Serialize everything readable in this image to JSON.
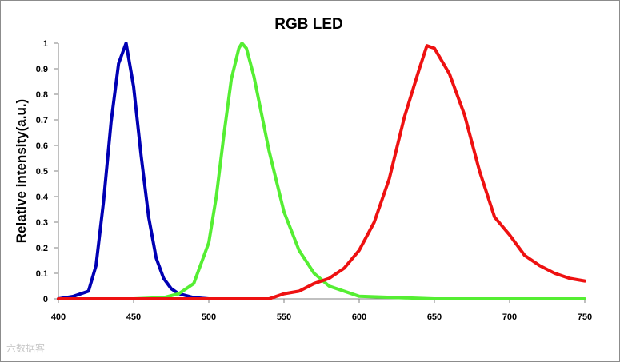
{
  "chart_data": {
    "type": "line",
    "title": "RGB LED",
    "xlabel": "",
    "ylabel": "Relative intensity(a.u.)",
    "xlim": [
      400,
      750
    ],
    "ylim": [
      0,
      1
    ],
    "x_ticks": [
      "400",
      "450",
      "500",
      "550",
      "600",
      "650",
      "700",
      "750"
    ],
    "y_ticks": [
      "0",
      "0.1",
      "0.2",
      "0.3",
      "0.4",
      "0.5",
      "0.6",
      "0.7",
      "0.8",
      "0.9",
      "1"
    ],
    "grid": false,
    "legend": "none",
    "series": [
      {
        "color": "#0000b4",
        "x": [
          400,
          410,
          420,
          425,
          430,
          435,
          440,
          445,
          450,
          455,
          460,
          465,
          470,
          475,
          480,
          490,
          500
        ],
        "y": [
          0.0,
          0.01,
          0.03,
          0.13,
          0.38,
          0.69,
          0.92,
          1.0,
          0.83,
          0.56,
          0.32,
          0.16,
          0.08,
          0.04,
          0.02,
          0.005,
          0.0
        ]
      },
      {
        "color": "#55ee33",
        "x": [
          450,
          470,
          480,
          490,
          500,
          505,
          510,
          515,
          520,
          522,
          525,
          530,
          540,
          550,
          560,
          570,
          580,
          600,
          650,
          750
        ],
        "y": [
          0.0,
          0.005,
          0.02,
          0.06,
          0.22,
          0.4,
          0.64,
          0.86,
          0.98,
          1.0,
          0.98,
          0.87,
          0.58,
          0.34,
          0.19,
          0.1,
          0.05,
          0.01,
          0.0,
          0.0
        ]
      },
      {
        "color": "#ee1111",
        "x": [
          400,
          540,
          550,
          560,
          570,
          580,
          590,
          600,
          610,
          620,
          630,
          640,
          645,
          650,
          660,
          670,
          680,
          690,
          700,
          710,
          720,
          730,
          740,
          750
        ],
        "y": [
          0.0,
          0.0,
          0.02,
          0.03,
          0.06,
          0.08,
          0.12,
          0.19,
          0.3,
          0.47,
          0.71,
          0.9,
          0.99,
          0.98,
          0.88,
          0.72,
          0.5,
          0.32,
          0.25,
          0.17,
          0.13,
          0.1,
          0.08,
          0.07
        ]
      }
    ]
  },
  "watermark": "六数据客"
}
